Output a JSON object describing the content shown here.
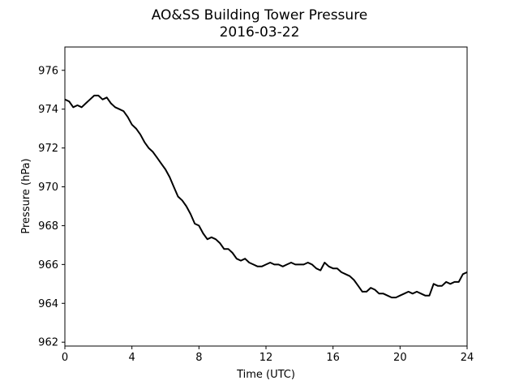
{
  "chart_data": {
    "type": "line",
    "title": "AO&SS Building Tower Pressure",
    "subtitle": "2016-03-22",
    "xlabel": "Time (UTC)",
    "ylabel": "Pressure (hPa)",
    "xlim": [
      0,
      24
    ],
    "ylim": [
      961.8,
      977.2
    ],
    "xticks": [
      0,
      4,
      8,
      12,
      16,
      20,
      24
    ],
    "yticks": [
      962,
      964,
      966,
      968,
      970,
      972,
      974,
      976
    ],
    "grid": false,
    "line_color": "#000000",
    "series": [
      {
        "x": [
          0,
          0.25,
          0.5,
          0.75,
          1.0,
          1.25,
          1.5,
          1.75,
          2.0,
          2.25,
          2.5,
          2.75,
          3.0,
          3.25,
          3.5,
          3.75,
          4.0,
          4.25,
          4.5,
          4.75,
          5.0,
          5.25,
          5.5,
          5.75,
          6.0,
          6.25,
          6.5,
          6.75,
          7.0,
          7.25,
          7.5,
          7.75,
          8.0,
          8.25,
          8.5,
          8.75,
          9.0,
          9.25,
          9.5,
          9.75,
          10.0,
          10.25,
          10.5,
          10.75,
          11.0,
          11.25,
          11.5,
          11.75,
          12.0,
          12.25,
          12.5,
          12.75,
          13.0,
          13.25,
          13.5,
          13.75,
          14.0,
          14.25,
          14.5,
          14.75,
          15.0,
          15.25,
          15.5,
          15.75,
          16.0,
          16.25,
          16.5,
          16.75,
          17.0,
          17.25,
          17.5,
          17.75,
          18.0,
          18.25,
          18.5,
          18.75,
          19.0,
          19.25,
          19.5,
          19.75,
          20.0,
          20.25,
          20.5,
          20.75,
          21.0,
          21.25,
          21.5,
          21.75,
          22.0,
          22.25,
          22.5,
          22.75,
          23.0,
          23.25,
          23.5,
          23.75,
          24.0
        ],
        "y": [
          974.5,
          974.4,
          974.1,
          974.2,
          974.1,
          974.3,
          974.5,
          974.7,
          974.7,
          974.5,
          974.6,
          974.3,
          974.1,
          974.0,
          973.9,
          973.6,
          973.2,
          973.0,
          972.7,
          972.3,
          972.0,
          971.8,
          971.5,
          971.2,
          970.9,
          970.5,
          970.0,
          969.5,
          969.3,
          969.0,
          968.6,
          968.1,
          968.0,
          967.6,
          967.3,
          967.4,
          967.3,
          967.1,
          966.8,
          966.8,
          966.6,
          966.3,
          966.2,
          966.3,
          966.1,
          966.0,
          965.9,
          965.9,
          966.0,
          966.1,
          966.0,
          966.0,
          965.9,
          966.0,
          966.1,
          966.0,
          966.0,
          966.0,
          966.1,
          966.0,
          965.8,
          965.7,
          966.1,
          965.9,
          965.8,
          965.8,
          965.6,
          965.5,
          965.4,
          965.2,
          964.9,
          964.6,
          964.6,
          964.8,
          964.7,
          964.5,
          964.5,
          964.4,
          964.3,
          964.3,
          964.4,
          964.5,
          964.6,
          964.5,
          964.6,
          964.5,
          964.4,
          964.4,
          965.0,
          964.9,
          964.9,
          965.1,
          965.0,
          965.1,
          965.1,
          965.5,
          965.6
        ]
      }
    ]
  }
}
